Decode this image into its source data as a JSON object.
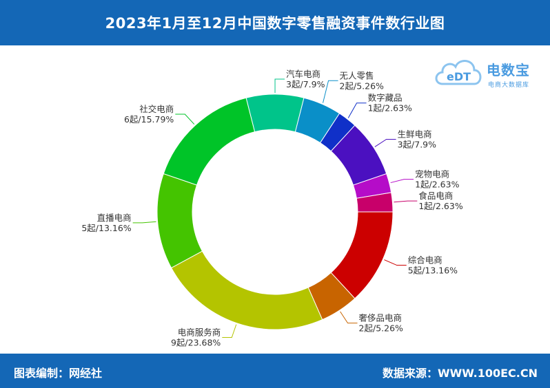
{
  "header": {
    "title": "2023年1月至12月中国数字零售融资事件数行业图"
  },
  "footer": {
    "left": "图表编制：网经社",
    "right": "数据来源：WWW.100EC.CN"
  },
  "logo": {
    "brand": "电数宝",
    "subtitle": "电商大数据库",
    "mark_text": "eDT"
  },
  "chart_data": {
    "type": "pie",
    "donut": true,
    "legend": "none",
    "unit": "起",
    "slices": [
      {
        "name": "汽车电商",
        "value": 3,
        "percent": "7.9%",
        "label": "3起/7.9%",
        "color": "#00c48a"
      },
      {
        "name": "无人零售",
        "value": 2,
        "percent": "5.26%",
        "label": "2起/5.26%",
        "color": "#0a8fc8"
      },
      {
        "name": "数字藏品",
        "value": 1,
        "percent": "2.63%",
        "label": "1起/2.63%",
        "color": "#1030c8"
      },
      {
        "name": "生鲜电商",
        "value": 3,
        "percent": "7.9%",
        "label": "3起/7.9%",
        "color": "#4b10c0"
      },
      {
        "name": "宠物电商",
        "value": 1,
        "percent": "2.63%",
        "label": "1起/2.63%",
        "color": "#b50cc8"
      },
      {
        "name": "食品电商",
        "value": 1,
        "percent": "2.63%",
        "label": "1起/2.63%",
        "color": "#c8006a"
      },
      {
        "name": "综合电商",
        "value": 5,
        "percent": "13.16%",
        "label": "5起/13.16%",
        "color": "#cc0000"
      },
      {
        "name": "奢侈品电商",
        "value": 2,
        "percent": "5.26%",
        "label": "2起/5.26%",
        "color": "#c86400"
      },
      {
        "name": "电商服务商",
        "value": 9,
        "percent": "23.68%",
        "label": "9起/23.68%",
        "color": "#b4c400"
      },
      {
        "name": "直播电商",
        "value": 5,
        "percent": "13.16%",
        "label": "5起/13.16%",
        "color": "#44c400"
      },
      {
        "name": "社交电商",
        "value": 6,
        "percent": "15.79%",
        "label": "6起/15.79%",
        "color": "#00c428"
      }
    ]
  }
}
